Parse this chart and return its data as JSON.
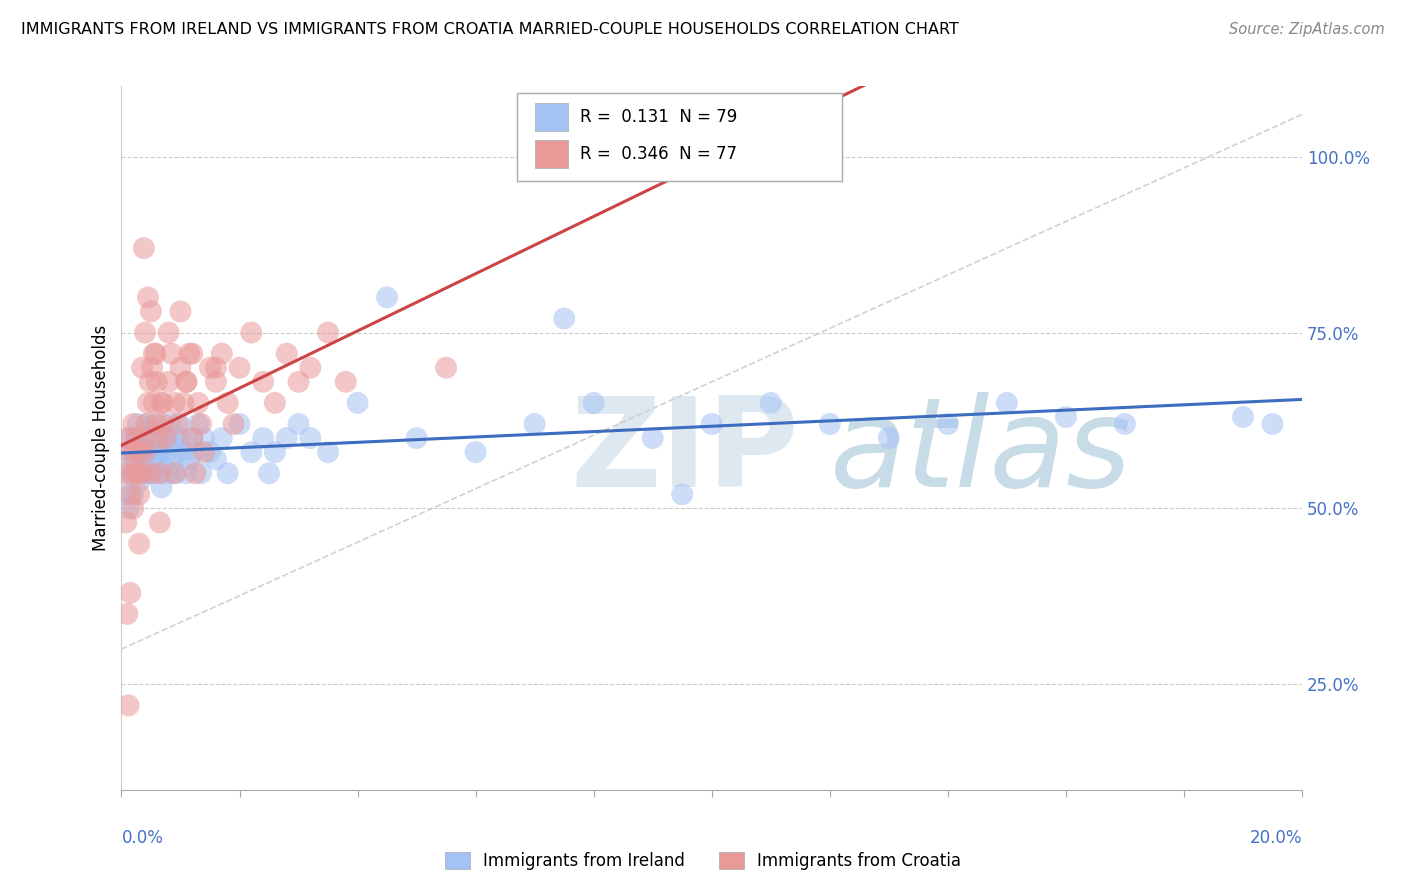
{
  "title": "IMMIGRANTS FROM IRELAND VS IMMIGRANTS FROM CROATIA MARRIED-COUPLE HOUSEHOLDS CORRELATION CHART",
  "source": "Source: ZipAtlas.com",
  "ylabel": "Married-couple Households",
  "y_ticks": [
    25.0,
    50.0,
    75.0,
    100.0
  ],
  "y_tick_labels": [
    "25.0%",
    "50.0%",
    "75.0%",
    "100.0%"
  ],
  "x_range": [
    0.0,
    20.0
  ],
  "y_range": [
    10.0,
    110.0
  ],
  "ireland_R": 0.131,
  "ireland_N": 79,
  "croatia_R": 0.346,
  "croatia_N": 77,
  "ireland_color": "#a4c2f4",
  "croatia_color": "#ea9999",
  "ireland_line_color": "#3d6dbf",
  "croatia_line_color": "#cc4444",
  "legend_label_ireland": "Immigrants from Ireland",
  "legend_label_croatia": "Immigrants from Croatia",
  "ireland_x": [
    0.05,
    0.08,
    0.1,
    0.12,
    0.15,
    0.18,
    0.2,
    0.22,
    0.25,
    0.28,
    0.3,
    0.32,
    0.35,
    0.38,
    0.4,
    0.42,
    0.45,
    0.48,
    0.5,
    0.52,
    0.55,
    0.58,
    0.6,
    0.62,
    0.65,
    0.68,
    0.7,
    0.72,
    0.75,
    0.78,
    0.8,
    0.82,
    0.85,
    0.88,
    0.9,
    0.92,
    0.95,
    0.98,
    1.0,
    1.05,
    1.1,
    1.15,
    1.2,
    1.25,
    1.3,
    1.35,
    1.4,
    1.5,
    1.6,
    1.7,
    1.8,
    2.0,
    2.2,
    2.4,
    2.6,
    2.8,
    3.0,
    3.5,
    4.0,
    5.0,
    6.0,
    7.0,
    8.0,
    9.0,
    10.0,
    11.0,
    12.0,
    13.0,
    14.0,
    15.0,
    17.0,
    19.0,
    4.5,
    7.5,
    9.5,
    16.0,
    19.5,
    2.5,
    3.2
  ],
  "ireland_y": [
    55,
    52,
    58,
    50,
    60,
    55,
    52,
    57,
    60,
    62,
    58,
    54,
    56,
    58,
    60,
    55,
    62,
    57,
    55,
    58,
    60,
    62,
    57,
    55,
    58,
    53,
    60,
    56,
    58,
    60,
    55,
    62,
    57,
    59,
    60,
    55,
    58,
    62,
    60,
    58,
    55,
    57,
    60,
    58,
    62,
    55,
    60,
    58,
    57,
    60,
    55,
    62,
    58,
    60,
    58,
    60,
    62,
    58,
    65,
    60,
    58,
    62,
    65,
    60,
    62,
    65,
    62,
    60,
    62,
    65,
    62,
    63,
    80,
    77,
    52,
    63,
    62,
    55,
    60
  ],
  "croatia_x": [
    0.05,
    0.08,
    0.1,
    0.12,
    0.15,
    0.18,
    0.2,
    0.22,
    0.25,
    0.28,
    0.3,
    0.32,
    0.35,
    0.38,
    0.4,
    0.42,
    0.45,
    0.48,
    0.5,
    0.52,
    0.55,
    0.58,
    0.6,
    0.62,
    0.65,
    0.68,
    0.7,
    0.75,
    0.8,
    0.85,
    0.9,
    0.95,
    1.0,
    1.05,
    1.1,
    1.15,
    1.2,
    1.25,
    1.3,
    1.35,
    1.4,
    1.5,
    1.6,
    1.7,
    1.8,
    1.9,
    2.0,
    2.2,
    2.4,
    2.6,
    2.8,
    3.0,
    3.2,
    3.5,
    0.1,
    0.15,
    0.2,
    0.25,
    0.3,
    0.35,
    0.4,
    0.45,
    0.5,
    0.55,
    0.6,
    0.65,
    0.7,
    0.8,
    0.9,
    1.0,
    1.1,
    1.2,
    0.38,
    1.6,
    3.8,
    5.5,
    0.12
  ],
  "croatia_y": [
    55,
    48,
    60,
    58,
    52,
    55,
    62,
    58,
    60,
    55,
    52,
    58,
    55,
    60,
    58,
    62,
    65,
    68,
    55,
    70,
    65,
    72,
    68,
    60,
    55,
    65,
    62,
    60,
    68,
    72,
    65,
    62,
    70,
    65,
    68,
    72,
    60,
    55,
    65,
    62,
    58,
    70,
    68,
    72,
    65,
    62,
    70,
    75,
    68,
    65,
    72,
    68,
    70,
    75,
    35,
    38,
    50,
    55,
    45,
    70,
    75,
    80,
    78,
    72,
    62,
    48,
    65,
    75,
    55,
    78,
    68,
    72,
    87,
    70,
    68,
    70,
    22
  ]
}
